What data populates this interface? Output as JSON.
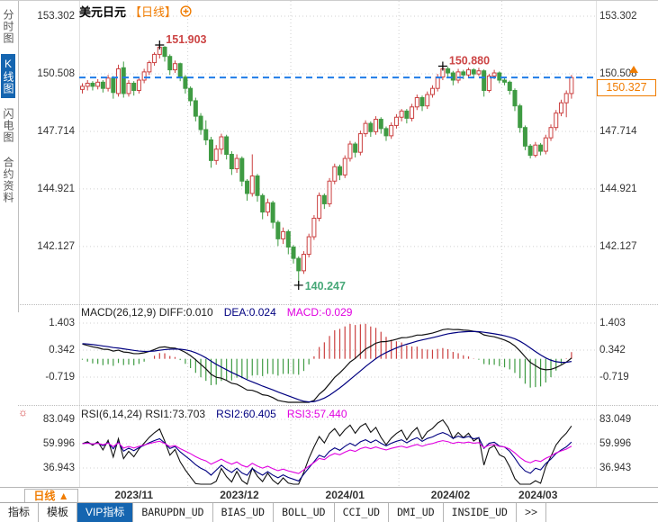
{
  "title": {
    "symbol": "美元日元",
    "period_tag": "【日线】"
  },
  "sidebar": {
    "items": [
      {
        "label": "分时图",
        "active": false
      },
      {
        "label": "K线图",
        "active": true
      },
      {
        "label": "闪电图",
        "active": false
      },
      {
        "label": "合约资料",
        "active": false
      }
    ]
  },
  "toolbar": {
    "icons": [
      "crosshair",
      "zoom-y-axis",
      "zoom-x-axis",
      "pan-right"
    ]
  },
  "colors": {
    "up": "#cb4040",
    "down": "#3f9b43",
    "accent": "#1565b0",
    "orange": "#f07c00",
    "diff_line": "#111111",
    "dea_line": "#000080",
    "magenta": "#e000e0",
    "price_line": "#1f7ce8",
    "grid": "#d0d0d0",
    "annotation_up": "#cc4444",
    "annotation_down": "#47a878"
  },
  "chart_data": {
    "type": "candlestick",
    "title": "美元日元 日线 (USD/JPY daily)",
    "main": {
      "y_ticks": [
        153.302,
        150.508,
        147.714,
        144.921,
        142.127
      ],
      "last_price": 150.327,
      "last_price_label": "150.327",
      "price_line_value": 150.327,
      "annotations": [
        {
          "text": "151.903",
          "index": 15,
          "price": 151.903,
          "side": "high",
          "color": "#cc4444"
        },
        {
          "text": "150.880",
          "index": 70,
          "price": 150.88,
          "side": "high",
          "color": "#cc4444"
        },
        {
          "text": "140.247",
          "index": 42,
          "price": 140.247,
          "side": "low",
          "color": "#47a878"
        }
      ],
      "months": [
        {
          "label": "2023/11",
          "start": 0
        },
        {
          "label": "2023/12",
          "start": 21
        },
        {
          "label": "2024/01",
          "start": 41
        },
        {
          "label": "2024/02",
          "start": 62
        },
        {
          "label": "2024/03",
          "start": 82
        }
      ],
      "ohlc": [
        [
          149.75,
          150.05,
          149.55,
          149.9
        ],
        [
          149.9,
          150.2,
          149.7,
          150.05
        ],
        [
          150.05,
          150.15,
          149.7,
          149.9
        ],
        [
          149.9,
          150.25,
          149.75,
          150.1
        ],
        [
          150.1,
          150.2,
          149.6,
          149.8
        ],
        [
          149.8,
          150.45,
          149.65,
          150.3
        ],
        [
          150.3,
          150.4,
          149.3,
          149.6
        ],
        [
          149.55,
          150.95,
          149.4,
          150.75
        ],
        [
          150.8,
          151.1,
          149.35,
          149.55
        ],
        [
          149.55,
          150.2,
          149.4,
          150.05
        ],
        [
          150.05,
          150.15,
          149.45,
          149.7
        ],
        [
          149.7,
          150.35,
          149.55,
          150.2
        ],
        [
          150.2,
          150.75,
          150.05,
          150.6
        ],
        [
          150.6,
          151.15,
          150.45,
          151.05
        ],
        [
          151.05,
          151.55,
          150.9,
          151.45
        ],
        [
          151.45,
          151.903,
          151.25,
          151.8
        ],
        [
          151.8,
          151.85,
          151.1,
          151.35
        ],
        [
          151.35,
          151.45,
          150.45,
          150.7
        ],
        [
          150.7,
          151.15,
          150.55,
          151.0
        ],
        [
          151.0,
          151.05,
          150.15,
          150.35
        ],
        [
          150.35,
          150.45,
          149.55,
          149.8
        ],
        [
          149.8,
          149.9,
          148.95,
          149.2
        ],
        [
          149.2,
          149.35,
          148.2,
          148.45
        ],
        [
          148.45,
          148.6,
          147.55,
          147.8
        ],
        [
          147.8,
          148.25,
          147.05,
          147.3
        ],
        [
          147.3,
          147.45,
          145.95,
          146.3
        ],
        [
          146.3,
          147.05,
          146.1,
          146.85
        ],
        [
          146.85,
          147.6,
          146.6,
          147.45
        ],
        [
          147.45,
          147.55,
          146.35,
          146.6
        ],
        [
          146.6,
          146.75,
          145.6,
          145.9
        ],
        [
          145.9,
          146.6,
          145.7,
          146.4
        ],
        [
          146.4,
          146.5,
          145.05,
          145.3
        ],
        [
          145.3,
          145.4,
          144.35,
          144.7
        ],
        [
          144.7,
          146.6,
          144.55,
          145.55
        ],
        [
          145.55,
          145.65,
          144.3,
          144.6
        ],
        [
          144.6,
          144.7,
          143.45,
          143.8
        ],
        [
          143.8,
          144.45,
          143.6,
          144.25
        ],
        [
          144.25,
          144.35,
          143.0,
          143.3
        ],
        [
          143.3,
          143.4,
          142.15,
          142.5
        ],
        [
          142.5,
          143.05,
          142.25,
          142.85
        ],
        [
          142.85,
          142.95,
          141.75,
          142.1
        ],
        [
          142.1,
          142.2,
          141.3,
          141.55
        ],
        [
          141.55,
          141.65,
          140.247,
          140.95
        ],
        [
          140.95,
          141.9,
          140.8,
          141.75
        ],
        [
          141.75,
          142.75,
          141.6,
          142.6
        ],
        [
          142.6,
          143.65,
          142.45,
          143.5
        ],
        [
          143.5,
          144.75,
          143.35,
          144.6
        ],
        [
          144.6,
          144.7,
          143.95,
          144.2
        ],
        [
          144.2,
          145.45,
          144.05,
          145.3
        ],
        [
          145.3,
          146.15,
          145.15,
          146.0
        ],
        [
          146.0,
          146.1,
          145.35,
          145.6
        ],
        [
          145.6,
          146.55,
          145.45,
          146.4
        ],
        [
          146.4,
          147.25,
          146.25,
          147.1
        ],
        [
          147.1,
          147.2,
          146.45,
          146.7
        ],
        [
          146.7,
          147.75,
          146.55,
          147.6
        ],
        [
          147.6,
          148.25,
          147.45,
          148.1
        ],
        [
          148.1,
          148.2,
          147.45,
          147.7
        ],
        [
          147.7,
          148.45,
          147.55,
          148.3
        ],
        [
          148.3,
          148.4,
          147.6,
          147.85
        ],
        [
          147.85,
          147.95,
          147.25,
          147.5
        ],
        [
          147.5,
          148.15,
          147.35,
          148.0
        ],
        [
          148.0,
          148.55,
          147.85,
          148.4
        ],
        [
          148.4,
          148.8,
          148.2,
          148.7
        ],
        [
          148.7,
          148.8,
          148.1,
          148.35
        ],
        [
          148.35,
          149.05,
          148.2,
          148.9
        ],
        [
          148.9,
          149.5,
          148.75,
          149.35
        ],
        [
          149.35,
          149.45,
          148.7,
          148.95
        ],
        [
          148.95,
          149.65,
          148.8,
          149.5
        ],
        [
          149.5,
          149.95,
          149.35,
          149.8
        ],
        [
          149.8,
          150.5,
          149.65,
          150.35
        ],
        [
          150.35,
          150.88,
          150.2,
          150.75
        ],
        [
          150.75,
          150.85,
          150.3,
          150.55
        ],
        [
          150.55,
          150.65,
          149.95,
          150.2
        ],
        [
          150.2,
          150.75,
          150.05,
          150.6
        ],
        [
          150.6,
          150.7,
          150.25,
          150.45
        ],
        [
          150.45,
          150.8,
          150.3,
          150.7
        ],
        [
          150.7,
          150.78,
          150.35,
          150.5
        ],
        [
          150.5,
          150.8,
          150.4,
          150.65
        ],
        [
          150.65,
          150.72,
          149.4,
          149.7
        ],
        [
          149.7,
          150.5,
          149.6,
          150.4
        ],
        [
          150.4,
          150.7,
          150.25,
          150.55
        ],
        [
          150.55,
          150.62,
          150.05,
          150.2
        ],
        [
          150.2,
          150.35,
          149.95,
          150.1
        ],
        [
          150.1,
          150.18,
          149.5,
          149.7
        ],
        [
          149.7,
          149.8,
          148.7,
          148.95
        ],
        [
          148.95,
          149.05,
          147.65,
          147.9
        ],
        [
          147.9,
          148.0,
          146.8,
          147.0
        ],
        [
          147.0,
          147.1,
          146.4,
          146.55
        ],
        [
          146.55,
          147.2,
          146.45,
          147.05
        ],
        [
          147.05,
          147.15,
          146.55,
          146.75
        ],
        [
          146.75,
          147.55,
          146.6,
          147.4
        ],
        [
          147.4,
          148.05,
          147.25,
          147.9
        ],
        [
          147.9,
          148.75,
          147.75,
          148.6
        ],
        [
          148.6,
          149.25,
          148.45,
          149.1
        ],
        [
          149.1,
          149.7,
          148.4,
          149.55
        ],
        [
          149.55,
          150.45,
          149.3,
          150.327
        ]
      ]
    },
    "macd": {
      "header": [
        {
          "text": "MACD(26,12,9) DIFF:0.010",
          "color": "#222222"
        },
        {
          "text": "DEA:0.024",
          "color": "#000080"
        },
        {
          "text": "MACD:-0.029",
          "color": "#e000e0"
        }
      ],
      "y_ticks": [
        1.403,
        0.342,
        -0.719
      ],
      "params": {
        "fast": 12,
        "slow": 26,
        "signal": 9
      }
    },
    "rsi": {
      "header": [
        {
          "text": "RSI(6,14,24) RSI1:73.703",
          "color": "#222222"
        },
        {
          "text": "RSI2:60.405",
          "color": "#000080"
        },
        {
          "text": "RSI3:57.440",
          "color": "#e000e0"
        }
      ],
      "y_ticks": [
        83.049,
        59.996,
        36.943
      ],
      "periods": [
        6,
        14,
        24
      ],
      "line_colors": [
        "#111111",
        "#000080",
        "#e000e0"
      ]
    }
  },
  "bottom": {
    "period_button": "日线 ▲",
    "tabs": [
      {
        "label": "指标"
      },
      {
        "label": "模板"
      },
      {
        "label": "VIP指标",
        "active": true
      },
      {
        "label": "BARUPDN_UD",
        "mono": true
      },
      {
        "label": "BIAS_UD",
        "mono": true
      },
      {
        "label": "BOLL_UD",
        "mono": true
      },
      {
        "label": "CCI_UD",
        "mono": true
      },
      {
        "label": "DMI_UD",
        "mono": true
      },
      {
        "label": "INSIDE_UD",
        "mono": true
      },
      {
        "label": "&gt;&gt;",
        "raw": ">>"
      }
    ]
  }
}
